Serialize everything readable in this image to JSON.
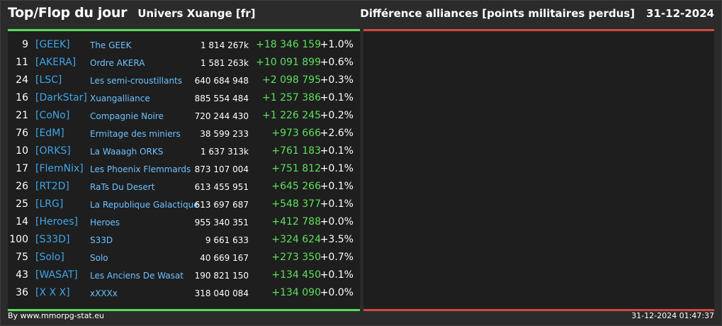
{
  "header": {
    "title": "Top/Flop du jour",
    "universe": "Univers Xuange [fr]",
    "ranking_title": "Différence alliances [points militaires perdus]",
    "date": "31-12-2024"
  },
  "colors": {
    "background": "#2b2b2b",
    "panel": "#1e1e1e",
    "top_accent": "#55dd55",
    "flop_accent": "#d0483f",
    "tag": "#3fa5e8",
    "name": "#6cc1ff",
    "gain": "#5de05d"
  },
  "top": [
    {
      "rank": "9",
      "tag": "[GEEK]",
      "name": "The GEEK",
      "points": "1 814 267k",
      "diff": "+18 346 159",
      "pct": "+1.0%"
    },
    {
      "rank": "11",
      "tag": "[AKERA]",
      "name": "Ordre AKERA",
      "points": "1 581 263k",
      "diff": "+10 091 899",
      "pct": "+0.6%"
    },
    {
      "rank": "24",
      "tag": "[LSC]",
      "name": "Les semi-croustillants",
      "points": "640 684 948",
      "diff": "+2 098 795",
      "pct": "+0.3%"
    },
    {
      "rank": "16",
      "tag": "[DarkStar]",
      "name": "Xuangalliance",
      "points": "885 554 484",
      "diff": "+1 257 386",
      "pct": "+0.1%"
    },
    {
      "rank": "21",
      "tag": "[CoNo]",
      "name": "Compagnie Noire",
      "points": "720 244 430",
      "diff": "+1 226 245",
      "pct": "+0.2%"
    },
    {
      "rank": "76",
      "tag": "[EdM]",
      "name": "Ermitage des miniers",
      "points": "38 599 233",
      "diff": "+973 666",
      "pct": "+2.6%"
    },
    {
      "rank": "10",
      "tag": "[ORKS]",
      "name": "La Waaagh ORKS",
      "points": "1 637 313k",
      "diff": "+761 183",
      "pct": "+0.1%"
    },
    {
      "rank": "17",
      "tag": "[FlemNix]",
      "name": "Les Phoenix Flemmards",
      "points": "873 107 004",
      "diff": "+751 812",
      "pct": "+0.1%"
    },
    {
      "rank": "26",
      "tag": "[RT2D]",
      "name": "RaTs Du Desert",
      "points": "613 455 951",
      "diff": "+645 266",
      "pct": "+0.1%"
    },
    {
      "rank": "25",
      "tag": "[LRG]",
      "name": "La Republique Galactique",
      "points": "613 697 687",
      "diff": "+548 377",
      "pct": "+0.1%"
    },
    {
      "rank": "14",
      "tag": "[Heroes]",
      "name": "Heroes",
      "points": "955 340 351",
      "diff": "+412 788",
      "pct": "+0.0%"
    },
    {
      "rank": "100",
      "tag": "[S33D]",
      "name": "S33D",
      "points": "9 661 633",
      "diff": "+324 624",
      "pct": "+3.5%"
    },
    {
      "rank": "75",
      "tag": "[Solo]",
      "name": "Solo",
      "points": "40 669 167",
      "diff": "+273 350",
      "pct": "+0.7%"
    },
    {
      "rank": "43",
      "tag": "[WASAT]",
      "name": "Les Anciens De Wasat",
      "points": "190 821 150",
      "diff": "+134 450",
      "pct": "+0.1%"
    },
    {
      "rank": "36",
      "tag": "[X X X]",
      "name": "xXXXx",
      "points": "318 040 084",
      "diff": "+134 090",
      "pct": "+0.0%"
    }
  ],
  "footer": {
    "credit": "By www.mmorpg-stat.eu",
    "timestamp": "31-12-2024 01:47:37"
  }
}
